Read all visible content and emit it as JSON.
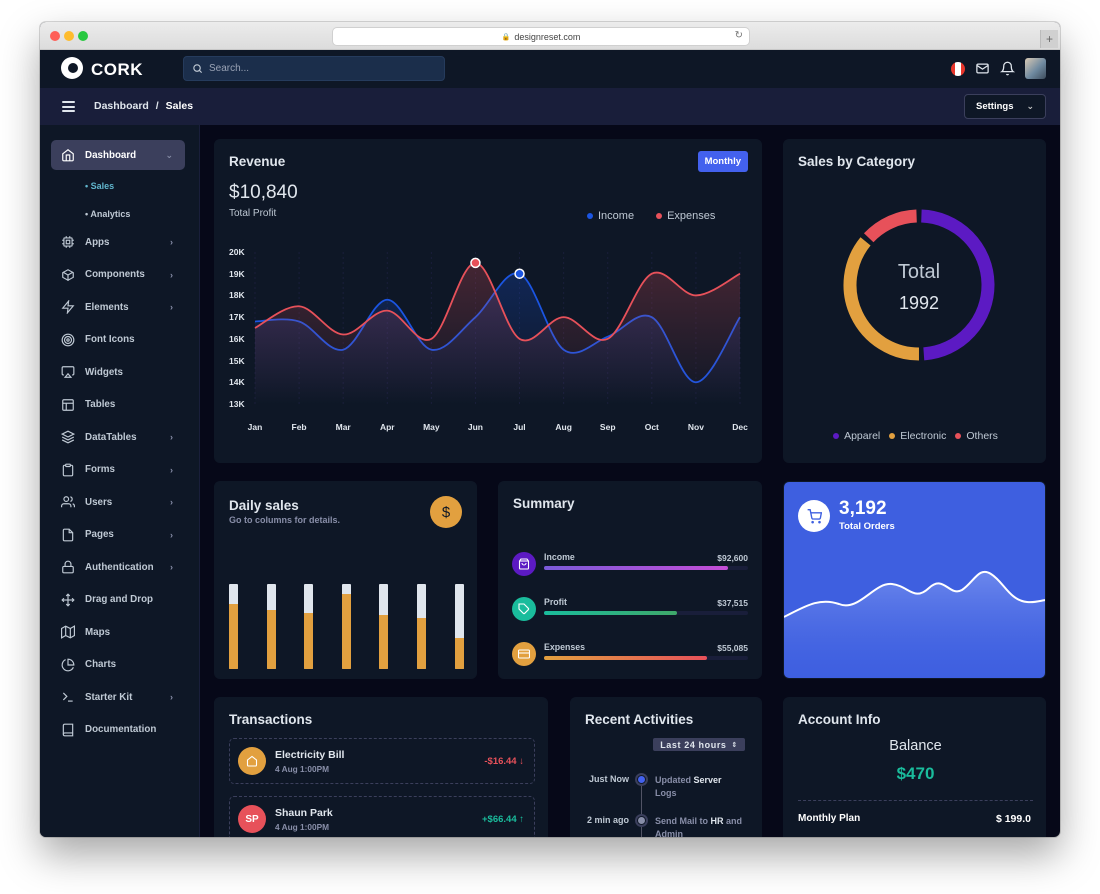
{
  "browser": {
    "url": "designreset.com"
  },
  "app": {
    "brand": "CORK",
    "search_placeholder": "Search..."
  },
  "breadcrumb": {
    "parent": "Dashboard",
    "sep": "/",
    "current": "Sales"
  },
  "settings_label": "Settings",
  "sidebar": {
    "items": [
      {
        "label": "Dashboard",
        "icon": "home-icon"
      },
      {
        "label": "Apps",
        "icon": "cpu-icon"
      },
      {
        "label": "Components",
        "icon": "box-icon"
      },
      {
        "label": "Elements",
        "icon": "zap-icon"
      },
      {
        "label": "Font Icons",
        "icon": "target-icon"
      },
      {
        "label": "Widgets",
        "icon": "airplay-icon"
      },
      {
        "label": "Tables",
        "icon": "layout-icon"
      },
      {
        "label": "DataTables",
        "icon": "layers-icon"
      },
      {
        "label": "Forms",
        "icon": "clipboard-icon"
      },
      {
        "label": "Users",
        "icon": "users-icon"
      },
      {
        "label": "Pages",
        "icon": "file-icon"
      },
      {
        "label": "Authentication",
        "icon": "lock-icon"
      },
      {
        "label": "Drag and Drop",
        "icon": "move-icon"
      },
      {
        "label": "Maps",
        "icon": "map-icon"
      },
      {
        "label": "Charts",
        "icon": "pie-chart-icon"
      },
      {
        "label": "Starter Kit",
        "icon": "terminal-icon"
      },
      {
        "label": "Documentation",
        "icon": "book-icon"
      }
    ],
    "sub": [
      "Sales",
      "Analytics"
    ]
  },
  "revenue": {
    "title": "Revenue",
    "period_button": "Monthly",
    "total": "$10,840",
    "total_label": "Total Profit",
    "legend_income": "Income",
    "legend_expenses": "Expenses"
  },
  "chart_data": {
    "type": "area",
    "title": "Revenue",
    "categories": [
      "Jan",
      "Feb",
      "Mar",
      "Apr",
      "May",
      "Jun",
      "Jul",
      "Aug",
      "Sep",
      "Oct",
      "Nov",
      "Dec"
    ],
    "y_ticks": [
      "20K",
      "19K",
      "18K",
      "17K",
      "16K",
      "15K",
      "14K",
      "13K"
    ],
    "ylim": [
      13000,
      20000
    ],
    "series": [
      {
        "name": "Income",
        "color": "#1b55e2",
        "values": [
          16800,
          16800,
          15500,
          17800,
          15500,
          17000,
          19000,
          15500,
          16100,
          17000,
          14000,
          17000
        ]
      },
      {
        "name": "Expenses",
        "color": "#e7515a",
        "values": [
          16500,
          17500,
          16200,
          17300,
          16000,
          19500,
          16000,
          17000,
          16000,
          19000,
          18000,
          19000
        ]
      }
    ],
    "highlight_points": [
      {
        "series": "Expenses",
        "x": "Jun",
        "y": 19500
      },
      {
        "series": "Income",
        "x": "Jul",
        "y": 19000
      }
    ]
  },
  "category": {
    "title": "Sales by Category",
    "center_label": "Total",
    "center_value": "1992",
    "legend": [
      {
        "label": "Apparel",
        "color": "#5c1ac3"
      },
      {
        "label": "Electronic",
        "color": "#e2a03f"
      },
      {
        "label": "Others",
        "color": "#e7515a"
      }
    ],
    "slices": [
      {
        "label": "Apparel",
        "value": 985,
        "color": "#5c1ac3"
      },
      {
        "label": "Electronic",
        "value": 737,
        "color": "#e2a03f"
      },
      {
        "label": "Others",
        "value": 270,
        "color": "#e7515a"
      }
    ]
  },
  "daily": {
    "title": "Daily sales",
    "subtitle": "Go to columns for details.",
    "currency_symbol": "$",
    "bars": [
      0.77,
      0.7,
      0.66,
      0.88,
      0.64,
      0.6,
      0.37
    ]
  },
  "summary": {
    "title": "Summary",
    "rows": [
      {
        "label": "Income",
        "value": "$92,600",
        "progress": 0.9,
        "color": "#5c1ac3",
        "icon": "shopping-bag-icon"
      },
      {
        "label": "Profit",
        "value": "$37,515",
        "progress": 0.65,
        "color": "#1abc9c",
        "icon": "tag-icon"
      },
      {
        "label": "Expenses",
        "value": "$55,085",
        "progress": 0.8,
        "color": "#e2a03f",
        "icon": "credit-card-icon"
      }
    ]
  },
  "orders": {
    "value": "3,192",
    "label": "Total Orders"
  },
  "transactions": {
    "title": "Transactions",
    "items": [
      {
        "name": "Electricity Bill",
        "date": "4 Aug 1:00PM",
        "amount": "-$16.44",
        "direction": "down",
        "avatar": "",
        "color": "#e2a03f"
      },
      {
        "name": "Shaun Park",
        "date": "4 Aug 1:00PM",
        "amount": "+$66.44",
        "direction": "up",
        "avatar": "SP",
        "color": "#e7515a"
      }
    ]
  },
  "activities": {
    "title": "Recent Activities",
    "filter": "Last 24 hours",
    "items": [
      {
        "time": "Just Now",
        "pre": "Updated",
        "strong": "Server",
        "post": "Logs"
      },
      {
        "time": "2 min ago",
        "pre": "Send Mail to",
        "strong": "HR",
        "post": "and Admin"
      }
    ]
  },
  "account": {
    "title": "Account Info",
    "balance_label": "Balance",
    "balance": "$470",
    "plan_label": "Monthly Plan",
    "plan_value": "$ 199.0"
  }
}
